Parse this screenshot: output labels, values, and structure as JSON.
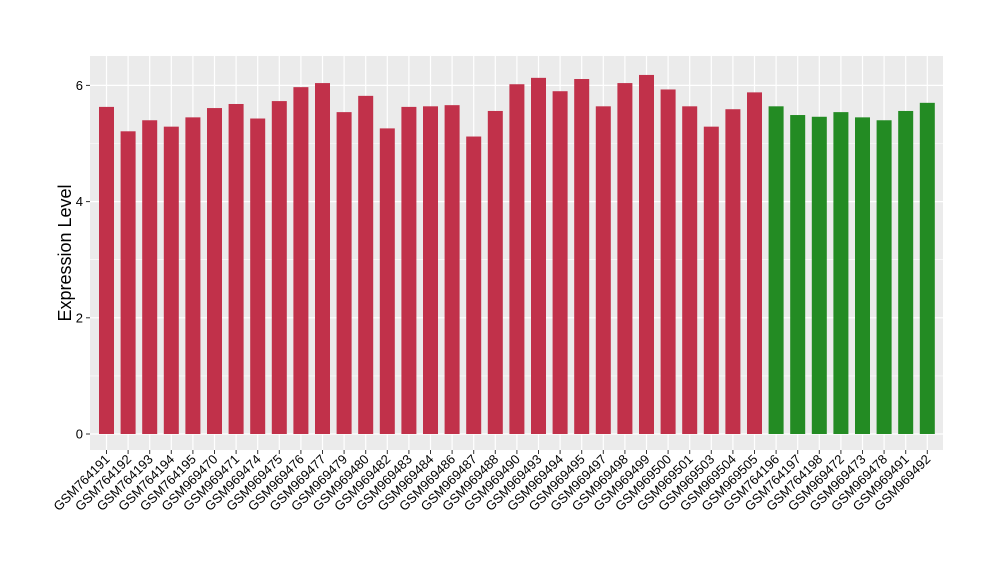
{
  "chart_data": {
    "type": "bar",
    "title": "",
    "xlabel": "",
    "ylabel": "Expression Level",
    "ylim": [
      0,
      6.4
    ],
    "y_ticks": [
      "0",
      "2",
      "4",
      "6"
    ],
    "grid": true,
    "categories": [
      "GSM764191",
      "GSM764192",
      "GSM764193",
      "GSM764194",
      "GSM764195",
      "GSM969470",
      "GSM969471",
      "GSM969474",
      "GSM969475",
      "GSM969476",
      "GSM969477",
      "GSM969479",
      "GSM969480",
      "GSM969482",
      "GSM969483",
      "GSM969484",
      "GSM969486",
      "GSM969487",
      "GSM969488",
      "GSM969490",
      "GSM969493",
      "GSM969494",
      "GSM969495",
      "GSM969497",
      "GSM969498",
      "GSM969499",
      "GSM969500",
      "GSM969501",
      "GSM969503",
      "GSM969504",
      "GSM969505",
      "GSM764196",
      "GSM764197",
      "GSM764198",
      "GSM969472",
      "GSM969473",
      "GSM969478",
      "GSM969491",
      "GSM969492"
    ],
    "values": [
      5.63,
      5.21,
      5.4,
      5.29,
      5.45,
      5.61,
      5.68,
      5.43,
      5.73,
      5.97,
      6.04,
      5.54,
      5.82,
      5.26,
      5.63,
      5.64,
      5.66,
      5.12,
      5.56,
      6.02,
      6.13,
      5.9,
      6.11,
      5.64,
      6.04,
      6.18,
      5.93,
      5.64,
      5.29,
      5.59,
      5.88,
      5.64,
      5.49,
      5.46,
      5.54,
      5.45,
      5.4,
      5.56,
      5.7
    ],
    "group_sizes": [
      31,
      8
    ],
    "colors": {
      "group1": "#C1314A",
      "group2": "#238B23",
      "panel": "#EBEBEB",
      "grid": "#FFFFFF",
      "axis_text": "#000000"
    }
  }
}
